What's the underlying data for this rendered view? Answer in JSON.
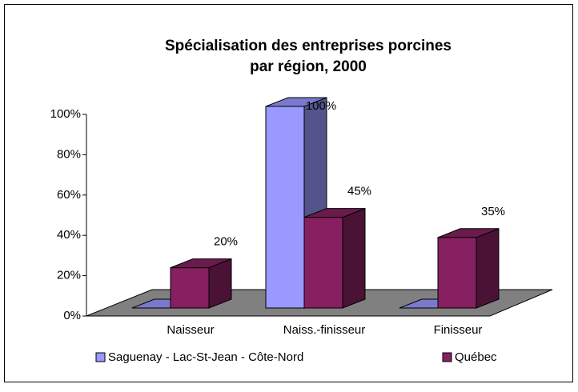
{
  "chart_data": {
    "type": "bar3d",
    "title": [
      "Spécialisation des entreprises porcines",
      "par région, 2000"
    ],
    "categories": [
      "Naisseur",
      "Naiss.-finisseur",
      "Finisseur"
    ],
    "series": [
      {
        "name": "Saguenay - Lac-St-Jean - Côte-Nord",
        "color": "#9999ff",
        "values": [
          0,
          100,
          0
        ],
        "value_labels": [
          null,
          "100%",
          null
        ]
      },
      {
        "name": "Québec",
        "color": "#862060",
        "values": [
          20,
          45,
          35
        ],
        "value_labels": [
          "20%",
          "45%",
          "35%"
        ]
      }
    ],
    "ylim": [
      0,
      100
    ],
    "yticks": [
      {
        "value": 0,
        "label": "0%"
      },
      {
        "value": 20,
        "label": "20%"
      },
      {
        "value": 40,
        "label": "40%"
      },
      {
        "value": 60,
        "label": "60%"
      },
      {
        "value": 80,
        "label": "80%"
      },
      {
        "value": 100,
        "label": "100%"
      }
    ],
    "grid": false,
    "legend": "bottom"
  }
}
